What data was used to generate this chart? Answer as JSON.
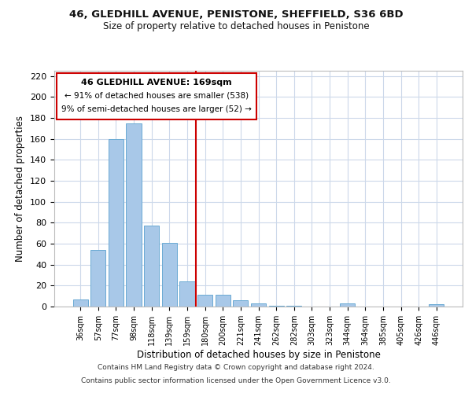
{
  "title_line1": "46, GLEDHILL AVENUE, PENISTONE, SHEFFIELD, S36 6BD",
  "title_line2": "Size of property relative to detached houses in Penistone",
  "xlabel": "Distribution of detached houses by size in Penistone",
  "ylabel": "Number of detached properties",
  "bar_labels": [
    "36sqm",
    "57sqm",
    "77sqm",
    "98sqm",
    "118sqm",
    "139sqm",
    "159sqm",
    "180sqm",
    "200sqm",
    "221sqm",
    "241sqm",
    "262sqm",
    "282sqm",
    "303sqm",
    "323sqm",
    "344sqm",
    "364sqm",
    "385sqm",
    "405sqm",
    "426sqm",
    "446sqm"
  ],
  "bar_values": [
    7,
    54,
    160,
    175,
    77,
    61,
    24,
    11,
    11,
    6,
    3,
    1,
    1,
    0,
    0,
    3,
    0,
    0,
    0,
    0,
    2
  ],
  "bar_color": "#a8c8e8",
  "bar_edge_color": "#6aaad4",
  "vline_x": 6.5,
  "vline_color": "#cc0000",
  "ylim": [
    0,
    225
  ],
  "yticks": [
    0,
    20,
    40,
    60,
    80,
    100,
    120,
    140,
    160,
    180,
    200,
    220
  ],
  "annotation_title": "46 GLEDHILL AVENUE: 169sqm",
  "annotation_line1": "← 91% of detached houses are smaller (538)",
  "annotation_line2": "9% of semi-detached houses are larger (52) →",
  "footer_line1": "Contains HM Land Registry data © Crown copyright and database right 2024.",
  "footer_line2": "Contains public sector information licensed under the Open Government Licence v3.0.",
  "background_color": "#ffffff",
  "grid_color": "#ccd8ea"
}
